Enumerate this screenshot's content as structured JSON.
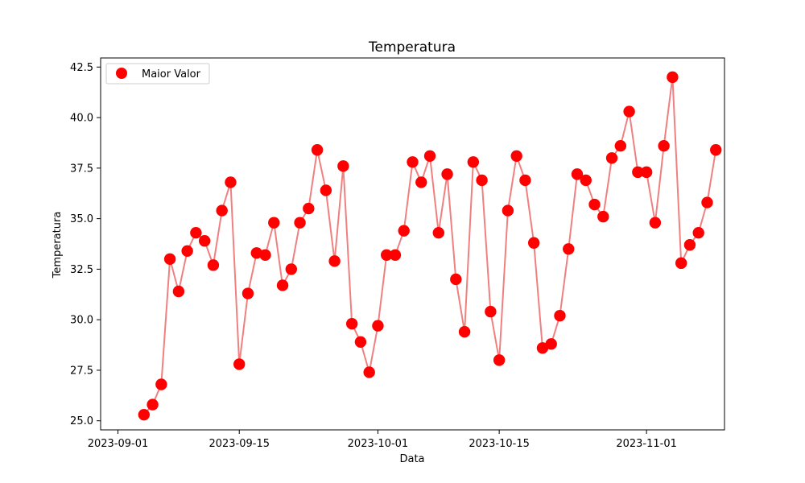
{
  "chart_data": {
    "type": "line",
    "title": "Temperatura",
    "xlabel": "Data",
    "ylabel": "Temperatura",
    "legend": {
      "position": "top-left",
      "entries": [
        "Maior Valor"
      ]
    },
    "x_ticks": [
      "2023-09-01",
      "2023-09-15",
      "2023-10-01",
      "2023-10-15",
      "2023-11-01"
    ],
    "y_ticks": [
      "25.0",
      "27.5",
      "30.0",
      "32.5",
      "35.0",
      "37.5",
      "40.0",
      "42.5"
    ],
    "xlim": [
      "2023-08-30",
      "2023-11-10"
    ],
    "ylim": [
      24.55,
      42.95
    ],
    "colors": {
      "line": "#f08080",
      "marker": "#ff0000",
      "axis": "#000000",
      "background": "#ffffff"
    },
    "series": [
      {
        "name": "Maior Valor",
        "x": [
          "2023-09-04",
          "2023-09-05",
          "2023-09-06",
          "2023-09-07",
          "2023-09-08",
          "2023-09-09",
          "2023-09-10",
          "2023-09-11",
          "2023-09-12",
          "2023-09-13",
          "2023-09-14",
          "2023-09-15",
          "2023-09-16",
          "2023-09-17",
          "2023-09-18",
          "2023-09-19",
          "2023-09-20",
          "2023-09-21",
          "2023-09-22",
          "2023-09-23",
          "2023-09-24",
          "2023-09-25",
          "2023-09-26",
          "2023-09-27",
          "2023-09-28",
          "2023-09-29",
          "2023-09-30",
          "2023-10-01",
          "2023-10-02",
          "2023-10-03",
          "2023-10-04",
          "2023-10-05",
          "2023-10-06",
          "2023-10-07",
          "2023-10-08",
          "2023-10-09",
          "2023-10-10",
          "2023-10-11",
          "2023-10-12",
          "2023-10-13",
          "2023-10-14",
          "2023-10-15",
          "2023-10-16",
          "2023-10-17",
          "2023-10-18",
          "2023-10-19",
          "2023-10-20",
          "2023-10-21",
          "2023-10-22",
          "2023-10-23",
          "2023-10-24",
          "2023-10-25",
          "2023-10-26",
          "2023-10-27",
          "2023-10-28",
          "2023-10-29",
          "2023-10-30",
          "2023-10-31",
          "2023-11-01",
          "2023-11-02",
          "2023-11-03",
          "2023-11-04",
          "2023-11-05",
          "2023-11-06",
          "2023-11-07",
          "2023-11-08",
          "2023-11-09"
        ],
        "values": [
          25.3,
          25.8,
          26.8,
          33.0,
          31.4,
          33.4,
          34.3,
          33.9,
          32.7,
          35.4,
          36.8,
          27.8,
          31.3,
          33.3,
          33.2,
          34.8,
          31.7,
          32.5,
          34.8,
          35.5,
          38.4,
          36.4,
          32.9,
          37.6,
          29.8,
          28.9,
          27.4,
          29.7,
          33.2,
          33.2,
          34.4,
          37.8,
          36.8,
          38.1,
          34.3,
          37.2,
          32.0,
          29.4,
          37.8,
          36.9,
          30.4,
          28.0,
          35.4,
          38.1,
          36.9,
          33.8,
          28.6,
          28.8,
          30.2,
          33.5,
          37.2,
          36.9,
          35.7,
          35.1,
          38.0,
          38.6,
          40.3,
          37.3,
          37.3,
          34.8,
          38.6,
          42.0,
          32.8,
          33.7,
          34.3,
          35.8,
          38.4
        ]
      }
    ]
  }
}
